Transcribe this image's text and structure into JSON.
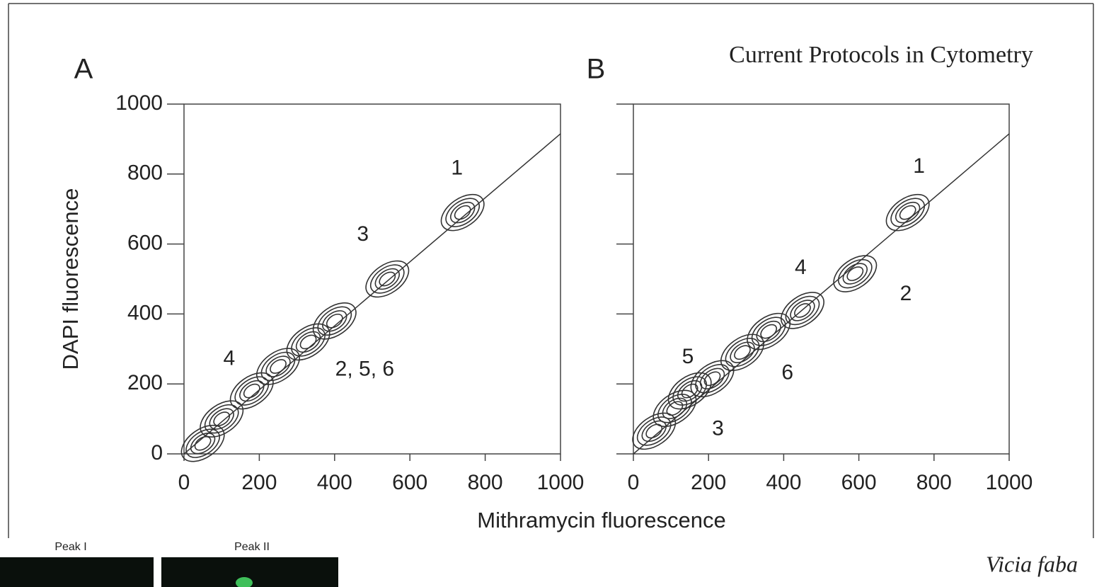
{
  "header": "Current Protocols in Cytometry",
  "xlabel": "Mithramycin fluorescence",
  "caption": "Vicia faba",
  "images": [
    {
      "label": "Peak I"
    },
    {
      "label": "Peak II"
    }
  ],
  "chart_data": [
    {
      "type": "contour",
      "panel": "A",
      "ylabel": "DAPI fluorescence",
      "xlim": [
        0,
        1000
      ],
      "ylim": [
        0,
        1000
      ],
      "xticks": [
        0,
        200,
        400,
        600,
        800,
        1000
      ],
      "yticks": [
        0,
        200,
        400,
        600,
        800,
        1000
      ],
      "show_ytick_labels": true,
      "color": "#333333",
      "points": {
        "x": [
          740,
          540,
          400,
          330,
          250,
          180,
          100,
          50
        ],
        "y": [
          690,
          500,
          380,
          320,
          250,
          180,
          100,
          30
        ]
      },
      "fit_line": {
        "x": [
          0,
          1000
        ],
        "y": [
          0,
          915
        ]
      },
      "annotations": [
        {
          "text": "1",
          "x": 725,
          "y": 815
        },
        {
          "text": "3",
          "x": 475,
          "y": 625
        },
        {
          "text": "4",
          "x": 120,
          "y": 270
        },
        {
          "text": "2, 5, 6",
          "x": 480,
          "y": 240
        }
      ]
    },
    {
      "type": "contour",
      "panel": "B",
      "xlim": [
        0,
        1000
      ],
      "ylim": [
        0,
        1000
      ],
      "xticks": [
        0,
        200,
        400,
        600,
        800,
        1000
      ],
      "yticks": [
        0,
        200,
        400,
        600,
        800,
        1000
      ],
      "show_ytick_labels": false,
      "color": "#333333",
      "points": {
        "x": [
          730,
          590,
          450,
          360,
          290,
          210,
          150,
          110,
          55
        ],
        "y": [
          690,
          515,
          410,
          350,
          290,
          215,
          180,
          130,
          65
        ]
      },
      "fit_line": {
        "x": [
          0,
          1000
        ],
        "y": [
          0,
          915
        ]
      },
      "annotations": [
        {
          "text": "1",
          "x": 760,
          "y": 820
        },
        {
          "text": "4",
          "x": 445,
          "y": 530
        },
        {
          "text": "2",
          "x": 725,
          "y": 455
        },
        {
          "text": "5",
          "x": 145,
          "y": 275
        },
        {
          "text": "6",
          "x": 410,
          "y": 230
        },
        {
          "text": "3",
          "x": 225,
          "y": 70
        }
      ]
    }
  ]
}
